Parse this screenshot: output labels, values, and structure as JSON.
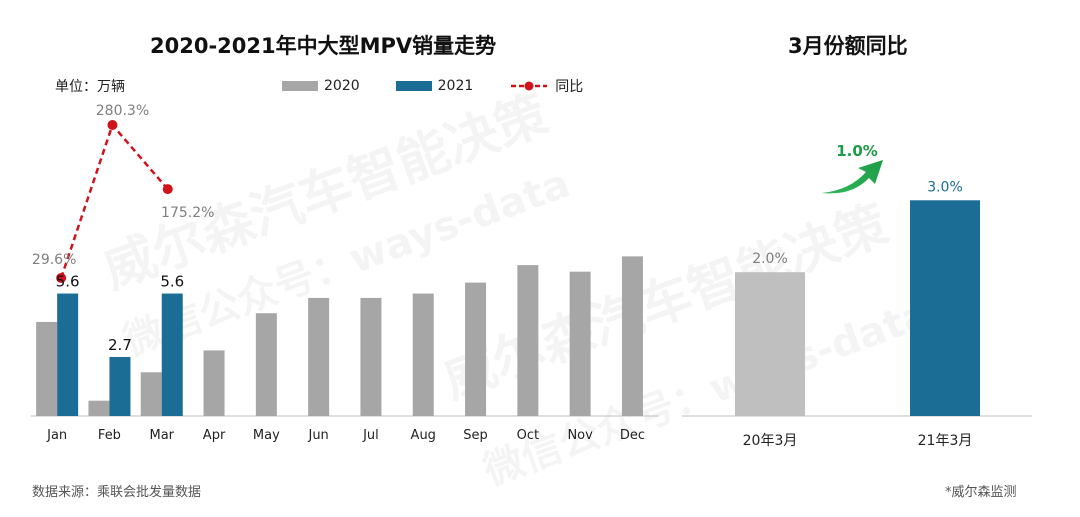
{
  "left_chart": {
    "title": "2020-2021年中大型MPV销量走势",
    "unit": "单位：万辆",
    "legend": [
      {
        "label": "2020",
        "color": "#a6a6a6",
        "kind": "bar"
      },
      {
        "label": "2021",
        "color": "#1b6d96",
        "kind": "bar"
      },
      {
        "label": "同比",
        "color": "#d0121b",
        "kind": "line"
      }
    ]
  },
  "right_chart": {
    "title": "3月份额同比",
    "delta_label": "1.0%"
  },
  "footer": {
    "source": "数据来源：乘联会批发量数据",
    "monitor": "*威尔森监测"
  },
  "watermarks": [
    "威尔森汽车智能决策",
    "微信公众号：ways-data"
  ],
  "chart_data": [
    {
      "type": "bar",
      "title": "2020-2021年中大型MPV销量走势",
      "categories": [
        "Jan",
        "Feb",
        "Mar",
        "Apr",
        "May",
        "Jun",
        "Jul",
        "Aug",
        "Sep",
        "Oct",
        "Nov",
        "Dec"
      ],
      "series": [
        {
          "name": "2020",
          "color": "#a6a6a6",
          "values": [
            4.3,
            0.7,
            2.0,
            3.0,
            4.7,
            5.4,
            5.4,
            5.6,
            6.1,
            6.9,
            6.6,
            7.3
          ]
        },
        {
          "name": "2021",
          "color": "#1b6d96",
          "values": [
            5.6,
            2.7,
            5.6,
            null,
            null,
            null,
            null,
            null,
            null,
            null,
            null,
            null
          ],
          "labels": [
            "5.6",
            "2.7",
            "5.6"
          ]
        }
      ],
      "line_series": {
        "name": "同比",
        "color": "#d0121b",
        "values": [
          29.6,
          280.3,
          175.2
        ],
        "labels": [
          "29.6%",
          "280.3%",
          "175.2%"
        ]
      },
      "ylabel": "单位：万辆",
      "ylim": [
        0,
        15
      ],
      "legend": "top",
      "grid": false
    },
    {
      "type": "bar",
      "title": "3月份额同比",
      "categories": [
        "20年3月",
        "21年3月"
      ],
      "values": [
        2.0,
        3.0
      ],
      "labels": [
        "2.0%",
        "3.0%"
      ],
      "colors": [
        "#bfbfbf",
        "#1b6d96"
      ],
      "ylim": [
        0,
        4.2
      ],
      "annotation": "1.0%",
      "grid": false
    }
  ]
}
